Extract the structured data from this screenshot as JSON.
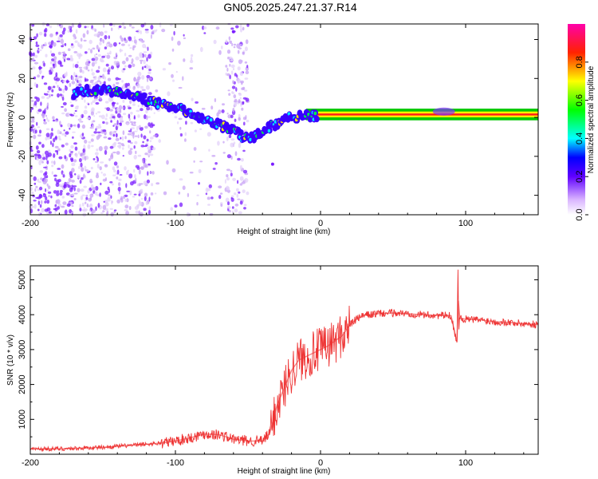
{
  "title": "GN05.2025.247.21.37.R14",
  "chart_data": [
    {
      "type": "heatmap",
      "xlabel": "Height of straight line (km)",
      "ylabel": "Frequency (Hz)",
      "xlim": [
        -200,
        150
      ],
      "ylim": [
        -50,
        48
      ],
      "xticks": [
        -200,
        -100,
        0,
        100
      ],
      "yticks": [
        -40,
        -20,
        0,
        20,
        40
      ],
      "colorbar": {
        "label": "Normalized spectral amplitude",
        "range": [
          0,
          1
        ],
        "ticks": [
          "0.0",
          "0.2",
          "0.4",
          "0.6",
          "0.8"
        ]
      },
      "frequency_track": {
        "x": [
          -170,
          -160,
          -150,
          -140,
          -130,
          -120,
          -110,
          -100,
          -90,
          -80,
          -70,
          -60,
          -50,
          -45,
          -40,
          -35,
          -30,
          -25,
          -20,
          -10,
          0,
          20,
          40,
          60,
          75,
          85,
          90,
          95,
          100,
          110,
          150
        ],
        "y": [
          12,
          14,
          14,
          13,
          11,
          9,
          7,
          5,
          2,
          -1,
          -4,
          -7,
          -11,
          -10,
          -7,
          -5,
          -3,
          -1,
          0,
          1,
          1,
          1,
          1,
          1,
          2,
          3,
          3,
          1,
          1,
          1,
          1
        ]
      }
    },
    {
      "type": "line",
      "xlabel": "Height of straight line (km)",
      "ylabel": "SNR (10 * v/v)",
      "xlim": [
        -200,
        150
      ],
      "ylim": [
        0,
        5400
      ],
      "xticks": [
        -200,
        -100,
        0,
        100
      ],
      "yticks": [
        1000,
        2000,
        3000,
        4000,
        5000
      ],
      "series": [
        {
          "color": "#ee3333",
          "x": [
            -200,
            -175,
            -150,
            -125,
            -110,
            -100,
            -90,
            -80,
            -70,
            -60,
            -50,
            -40,
            -35,
            -30,
            -25,
            -20,
            -15,
            -10,
            -5,
            0,
            5,
            10,
            15,
            20,
            25,
            30,
            40,
            50,
            60,
            70,
            80,
            90,
            94,
            95,
            96,
            100,
            110,
            120,
            130,
            140,
            150
          ],
          "y": [
            150,
            160,
            200,
            270,
            320,
            380,
            470,
            580,
            560,
            430,
            380,
            380,
            600,
            1400,
            1900,
            2400,
            2700,
            2800,
            2900,
            3000,
            3100,
            3250,
            3400,
            3700,
            3880,
            3980,
            4030,
            4050,
            4030,
            4000,
            3980,
            3970,
            3200,
            4400,
            3900,
            3870,
            3850,
            3800,
            3780,
            3740,
            3720
          ]
        }
      ]
    }
  ]
}
